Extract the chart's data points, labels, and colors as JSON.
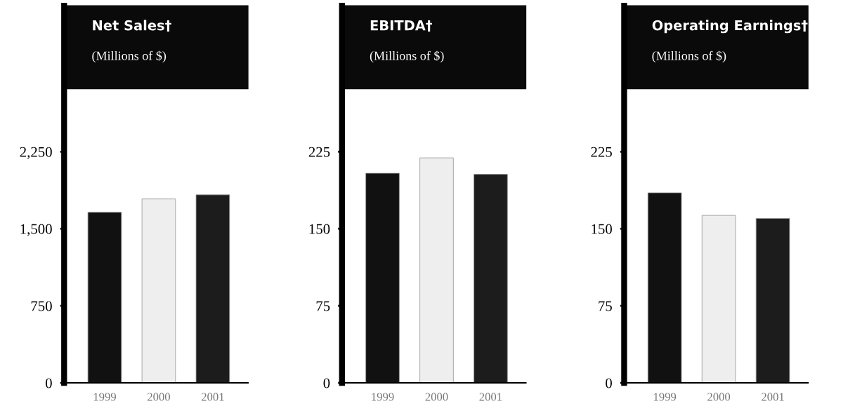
{
  "chart_data": [
    {
      "type": "bar",
      "title": "Net Sales†",
      "subtitle": "(Millions of $)",
      "categories": [
        "1999",
        "2000",
        "2001"
      ],
      "values": [
        1660,
        1790,
        1830
      ],
      "colors": [
        "#111111",
        "#eeeeee",
        "#1c1c1c"
      ],
      "ylim": [
        0,
        3670
      ],
      "yticks": [
        {
          "value": 0,
          "label": "0"
        },
        {
          "value": 750,
          "label": "750"
        },
        {
          "value": 1500,
          "label": "1,500"
        },
        {
          "value": 2250,
          "label": "2,250"
        }
      ],
      "grid": false,
      "legend": false
    },
    {
      "type": "bar",
      "title": "EBITDA†",
      "subtitle": "(Millions of $)",
      "categories": [
        "1999",
        "2000",
        "2001"
      ],
      "values": [
        204,
        219,
        203
      ],
      "colors": [
        "#111111",
        "#eeeeee",
        "#1c1c1c"
      ],
      "ylim": [
        0,
        367
      ],
      "yticks": [
        0,
        75,
        150,
        225
      ],
      "grid": false,
      "legend": false
    },
    {
      "type": "bar",
      "title": "Operating Earnings†",
      "subtitle": "(Millions of $)",
      "categories": [
        "1999",
        "2000",
        "2001"
      ],
      "values": [
        185,
        163,
        160
      ],
      "colors": [
        "#111111",
        "#eeeeee",
        "#1c1c1c"
      ],
      "ylim": [
        0,
        367
      ],
      "yticks": [
        0,
        75,
        150,
        225
      ],
      "grid": false,
      "legend": false
    }
  ]
}
